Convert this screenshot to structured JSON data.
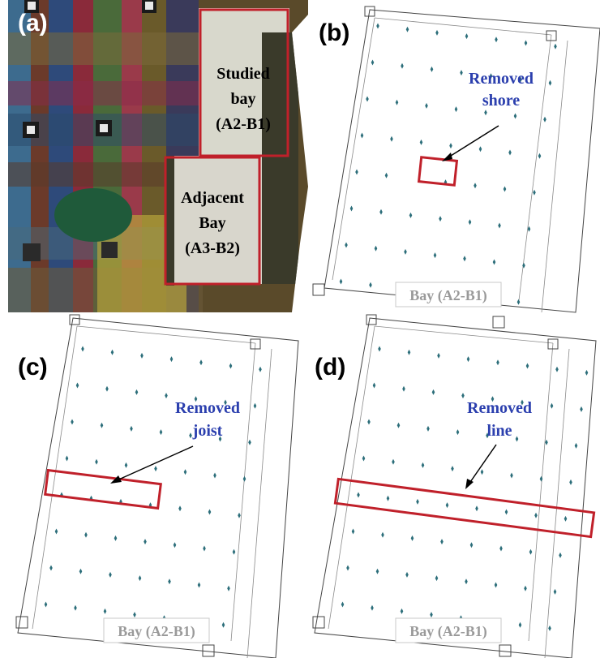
{
  "panels": {
    "a": {
      "label": "(a)",
      "studied_bay_lines": [
        "Studied",
        "bay",
        "(A2-B1)"
      ],
      "adjacent_bay_lines": [
        "Adjacent",
        "Bay",
        "(A3-B2)"
      ]
    },
    "b": {
      "label": "(b)",
      "annotation_lines": [
        "Removed",
        "shore"
      ],
      "bay_tag": "Bay (A2-B1)"
    },
    "c": {
      "label": "(c)",
      "annotation_lines": [
        "Removed",
        "joist"
      ],
      "bay_tag": "Bay (A2-B1)"
    },
    "d": {
      "label": "(d)",
      "annotation_lines": [
        "Removed",
        "line"
      ],
      "bay_tag": "Bay (A2-B1)"
    }
  },
  "colors": {
    "highlight_box": "#c0202a",
    "annotation_text": "#2b3fae",
    "shore_marker": "#2c6e7a",
    "bay_tag_text": "#9a9a9a"
  }
}
